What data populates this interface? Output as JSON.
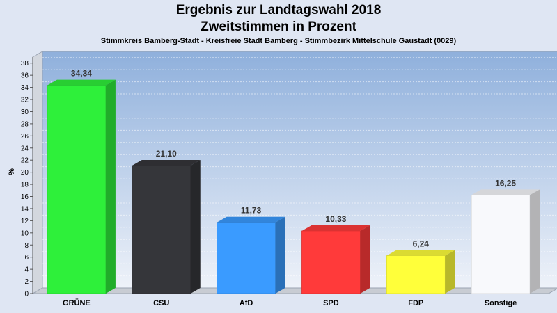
{
  "chart_data": {
    "type": "bar",
    "title": "Ergebnis zur Landtagswahl 2018",
    "subtitle": "Zweitstimmen in Prozent",
    "caption": "Stimmkreis Bamberg-Stadt - Kreisfreie Stadt Bamberg - Stimmbezirk Mittelschule Gaustadt (0029)",
    "ylabel": "%",
    "xlabel": "",
    "ylim": [
      0,
      39
    ],
    "yticks": [
      0,
      2,
      4,
      6,
      8,
      10,
      12,
      14,
      16,
      18,
      20,
      22,
      24,
      26,
      28,
      30,
      32,
      34,
      36,
      38
    ],
    "grid": true,
    "categories": [
      "GRÜNE",
      "CSU",
      "AfD",
      "SPD",
      "FDP",
      "Sonstige"
    ],
    "values": [
      34.34,
      21.1,
      11.73,
      10.33,
      6.24,
      16.25
    ],
    "value_labels": [
      "34,34",
      "21,10",
      "11,73",
      "10,33",
      "6,24",
      "16,25"
    ],
    "colors": [
      "#2ef03a",
      "#35363a",
      "#3a9bff",
      "#ff3a3a",
      "#ffff3a",
      "#f8f9fc"
    ]
  }
}
